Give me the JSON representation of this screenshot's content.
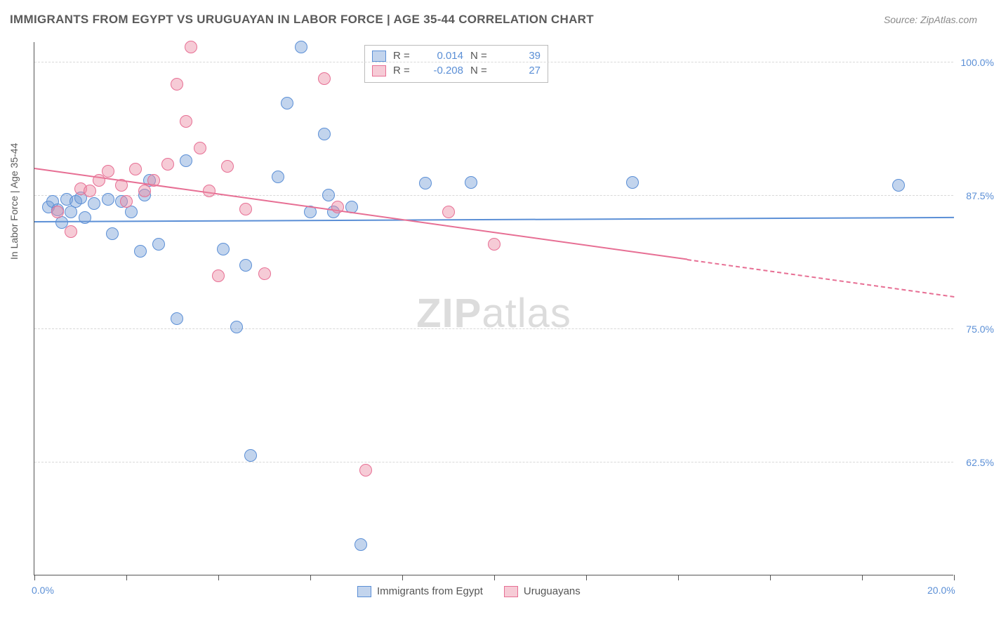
{
  "title": "IMMIGRANTS FROM EGYPT VS URUGUAYAN IN LABOR FORCE | AGE 35-44 CORRELATION CHART",
  "source": "Source: ZipAtlas.com",
  "ylabel": "In Labor Force | Age 35-44",
  "watermark_a": "ZIP",
  "watermark_b": "atlas",
  "chart": {
    "type": "scatter",
    "xlim": [
      0,
      20
    ],
    "ylim": [
      52,
      102
    ],
    "x_ticks": [
      0,
      2,
      4,
      6,
      8,
      10,
      12,
      14,
      16,
      18,
      20
    ],
    "x_tick_labels": {
      "0": "0.0%",
      "20": "20.0%"
    },
    "y_gridlines": [
      62.5,
      75.0,
      87.5,
      100.0
    ],
    "y_tick_labels": [
      "62.5%",
      "75.0%",
      "87.5%",
      "100.0%"
    ],
    "background_color": "#ffffff",
    "grid_color": "#d8d8d8",
    "axis_color": "#555555",
    "label_color": "#5b8fd6",
    "point_radius": 9,
    "series": [
      {
        "name": "Immigrants from Egypt",
        "fill": "rgba(120,160,215,0.45)",
        "stroke": "#5b8fd6",
        "R": "0.014",
        "N": "39",
        "trend": {
          "x1": 0,
          "y1": 85.0,
          "x2": 20,
          "y2": 85.4,
          "solid_until": 20
        },
        "points": [
          [
            0.3,
            86.5
          ],
          [
            0.4,
            87.0
          ],
          [
            0.5,
            86.2
          ],
          [
            0.6,
            85.0
          ],
          [
            0.7,
            87.2
          ],
          [
            0.8,
            86.0
          ],
          [
            0.9,
            87.0
          ],
          [
            1.0,
            87.3
          ],
          [
            1.1,
            85.5
          ],
          [
            1.3,
            86.8
          ],
          [
            1.6,
            87.2
          ],
          [
            1.7,
            84.0
          ],
          [
            1.9,
            87.0
          ],
          [
            2.1,
            86.0
          ],
          [
            2.3,
            82.3
          ],
          [
            2.4,
            87.6
          ],
          [
            2.5,
            89.0
          ],
          [
            2.7,
            83.0
          ],
          [
            3.1,
            76.0
          ],
          [
            3.3,
            90.8
          ],
          [
            4.1,
            82.5
          ],
          [
            4.4,
            75.2
          ],
          [
            4.6,
            81.0
          ],
          [
            4.7,
            63.2
          ],
          [
            5.3,
            89.3
          ],
          [
            5.5,
            96.2
          ],
          [
            5.8,
            101.5
          ],
          [
            6.0,
            86.0
          ],
          [
            6.3,
            93.3
          ],
          [
            6.4,
            87.6
          ],
          [
            6.5,
            86.0
          ],
          [
            6.9,
            86.5
          ],
          [
            7.1,
            54.8
          ],
          [
            8.5,
            88.7
          ],
          [
            9.5,
            88.8
          ],
          [
            13.0,
            88.8
          ],
          [
            18.8,
            88.5
          ]
        ]
      },
      {
        "name": "Uruguayans",
        "fill": "rgba(235,140,165,0.45)",
        "stroke": "#e76f94",
        "R": "-0.208",
        "N": "27",
        "trend": {
          "x1": 0,
          "y1": 90.0,
          "x2": 20,
          "y2": 78.0,
          "solid_until": 14.2
        },
        "points": [
          [
            0.5,
            86.0
          ],
          [
            0.8,
            84.2
          ],
          [
            1.0,
            88.2
          ],
          [
            1.2,
            88.0
          ],
          [
            1.4,
            89.0
          ],
          [
            1.6,
            89.8
          ],
          [
            1.9,
            88.5
          ],
          [
            2.0,
            87.0
          ],
          [
            2.2,
            90.0
          ],
          [
            2.4,
            88.0
          ],
          [
            2.6,
            89.0
          ],
          [
            2.9,
            90.5
          ],
          [
            3.1,
            98.0
          ],
          [
            3.3,
            94.5
          ],
          [
            3.4,
            101.5
          ],
          [
            3.6,
            92.0
          ],
          [
            3.8,
            88.0
          ],
          [
            4.0,
            80.0
          ],
          [
            4.2,
            90.3
          ],
          [
            4.6,
            86.3
          ],
          [
            5.0,
            80.2
          ],
          [
            6.3,
            98.5
          ],
          [
            6.6,
            86.5
          ],
          [
            7.2,
            61.8
          ],
          [
            9.0,
            86.0
          ],
          [
            10.0,
            83.0
          ]
        ]
      }
    ]
  }
}
